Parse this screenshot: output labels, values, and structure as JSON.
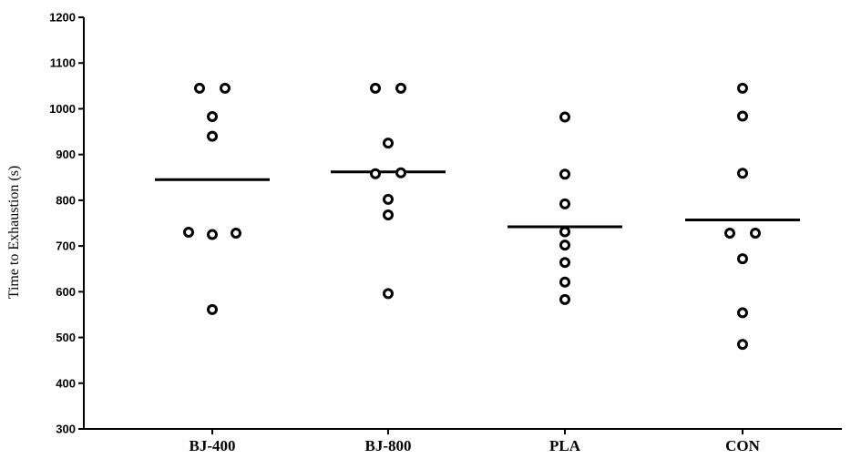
{
  "chart_data": {
    "type": "scatter",
    "ylabel": "Time to Exhaustion (s)",
    "xlabel": "",
    "ylim": [
      300,
      1200
    ],
    "yticks": [
      300,
      400,
      500,
      600,
      700,
      800,
      900,
      1000,
      1100,
      1200
    ],
    "categories": [
      "BJ-400",
      "BJ-800",
      "PLA",
      "CON"
    ],
    "groups": [
      {
        "label": "BJ-400",
        "mean": 845,
        "points": [
          1045,
          1045,
          983,
          940,
          730,
          725,
          728,
          561
        ]
      },
      {
        "label": "BJ-800",
        "mean": 862,
        "points": [
          1045,
          1045,
          925,
          858,
          860,
          802,
          768,
          596
        ]
      },
      {
        "label": "PLA",
        "mean": 742,
        "points": [
          982,
          857,
          792,
          731,
          702,
          664,
          621,
          583
        ]
      },
      {
        "label": "CON",
        "mean": 757,
        "points": [
          1045,
          984,
          859,
          728,
          728,
          672,
          554,
          485
        ]
      }
    ],
    "marker": "open-circle",
    "grid": false,
    "colors": {
      "marker": "#000000",
      "axis": "#000000"
    }
  }
}
